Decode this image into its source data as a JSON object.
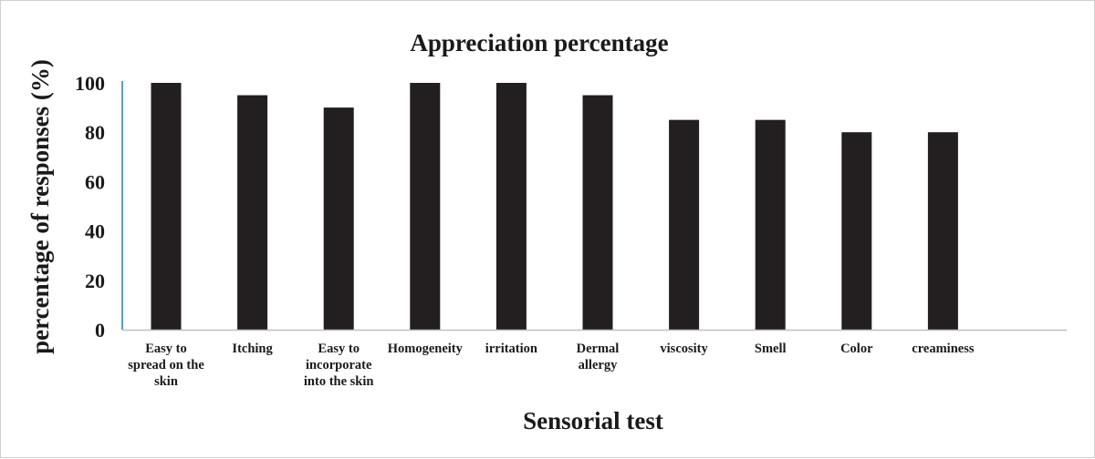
{
  "chart_data": {
    "type": "bar",
    "title": "Appreciation percentage",
    "xlabel": "Sensorial test",
    "ylabel": "percentage of responses (%)",
    "categories": [
      [
        "Easy to",
        "spread on the",
        "skin"
      ],
      [
        "Itching"
      ],
      [
        "Easy to",
        "incorporate",
        "into the skin"
      ],
      [
        "Homogeneity"
      ],
      [
        "irritation"
      ],
      [
        "Dermal",
        "allergy"
      ],
      [
        "viscosity"
      ],
      [
        "Smell"
      ],
      [
        "Color"
      ],
      [
        "creaminess"
      ]
    ],
    "values": [
      100,
      95,
      90,
      100,
      100,
      95,
      85,
      85,
      80,
      80
    ],
    "yticks": [
      "0",
      "20",
      "40",
      "60",
      "80",
      "100"
    ],
    "ylim": [
      0,
      100
    ],
    "grid": false,
    "bar_color": "#231f20",
    "y_axis_color": "#5b9bd5",
    "x_axis_color": "#bfbfbf"
  }
}
